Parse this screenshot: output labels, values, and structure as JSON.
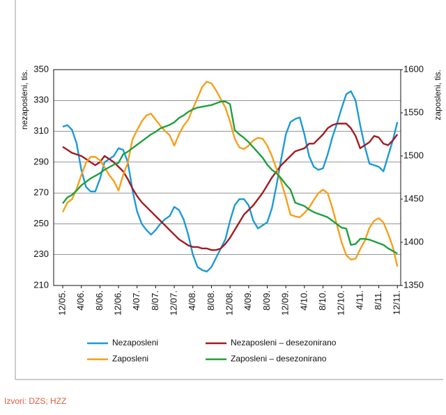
{
  "chart_data": {
    "type": "line",
    "categories": [
      "12/05.",
      null,
      null,
      null,
      "4/06.",
      null,
      null,
      null,
      "8/06.",
      null,
      null,
      null,
      "12/06.",
      null,
      null,
      null,
      "4/07.",
      null,
      null,
      null,
      "8/07.",
      null,
      null,
      null,
      "12/07.",
      null,
      null,
      null,
      "4/08.",
      null,
      null,
      null,
      "8/08.",
      null,
      null,
      null,
      "12/08.",
      null,
      null,
      null,
      "4/09.",
      null,
      null,
      null,
      "8/09.",
      null,
      null,
      null,
      "12/09.",
      null,
      null,
      null,
      "4/10.",
      null,
      null,
      null,
      "8/10.",
      null,
      null,
      null,
      "12/10.",
      null,
      null,
      null,
      "4/11.",
      null,
      null,
      null,
      "8/11.",
      null,
      null,
      null,
      "12/11."
    ],
    "ylabel": "nezaposleni, tis.",
    "y2label": "zaposleni, tis.",
    "ylim": [
      210,
      350
    ],
    "yticks": [
      210,
      230,
      250,
      270,
      290,
      310,
      330,
      350
    ],
    "y2lim": [
      1350,
      1600
    ],
    "y2ticks": [
      1350,
      1400,
      1450,
      1500,
      1550,
      1600
    ],
    "grid": true,
    "legend": "bottom",
    "series": [
      {
        "name": "Nezaposleni",
        "color": "#1b9ad6",
        "values": [
          313,
          314,
          311,
          302,
          285,
          274,
          271,
          271,
          279,
          290,
          292,
          294,
          299,
          298,
          290,
          272,
          258,
          250,
          246,
          243,
          246,
          250,
          253,
          255,
          261,
          259,
          253,
          243,
          230,
          222,
          220,
          219,
          222,
          228,
          234,
          240,
          252,
          262,
          266,
          266,
          262,
          252,
          247,
          249,
          251,
          260,
          275,
          292,
          308,
          316,
          318,
          319,
          308,
          294,
          287,
          285,
          286,
          295,
          306,
          315,
          325,
          334,
          336,
          330,
          314,
          300,
          289,
          288,
          287,
          284,
          294,
          304,
          316
        ]
      },
      {
        "name": "Nezaposleni – desezonirano",
        "color": "#a01c22",
        "values": [
          300,
          298,
          296,
          295,
          294,
          292,
          290,
          288,
          290,
          294,
          292,
          290,
          287,
          284,
          279,
          273,
          268,
          264,
          261,
          258,
          255,
          252,
          249,
          246,
          243,
          240,
          238,
          236,
          235,
          235,
          234,
          234,
          233,
          233,
          234,
          237,
          241,
          246,
          251,
          256,
          259,
          262,
          266,
          270,
          275,
          280,
          284,
          288,
          291,
          294,
          297,
          298,
          299,
          302,
          302,
          305,
          308,
          312,
          314,
          315,
          315,
          315,
          312,
          307,
          299,
          301,
          303,
          307,
          306,
          302,
          301,
          304,
          308
        ]
      },
      {
        "name": "Zaposleni",
        "color": "#f5a01a",
        "axis": "y2",
        "values": [
          1435,
          1446,
          1450,
          1462,
          1478,
          1492,
          1499,
          1499,
          1495,
          1487,
          1478,
          1471,
          1460,
          1478,
          1492,
          1519,
          1530,
          1540,
          1547,
          1549,
          1542,
          1535,
          1529,
          1524,
          1512,
          1525,
          1535,
          1542,
          1555,
          1567,
          1580,
          1586,
          1584,
          1576,
          1566,
          1556,
          1540,
          1520,
          1510,
          1508,
          1512,
          1518,
          1521,
          1520,
          1512,
          1500,
          1485,
          1470,
          1452,
          1432,
          1430,
          1429,
          1434,
          1440,
          1449,
          1457,
          1461,
          1457,
          1440,
          1420,
          1400,
          1385,
          1380,
          1381,
          1392,
          1402,
          1417,
          1425,
          1428,
          1423,
          1410,
          1395,
          1372
        ]
      },
      {
        "name": "Zaposleni – desezonirano",
        "color": "#1ea03c",
        "axis": "y2",
        "values": [
          1445,
          1452,
          1455,
          1460,
          1466,
          1470,
          1474,
          1477,
          1480,
          1484,
          1487,
          1490,
          1492,
          1502,
          1505,
          1509,
          1513,
          1517,
          1521,
          1525,
          1528,
          1532,
          1534,
          1536,
          1539,
          1544,
          1547,
          1551,
          1554,
          1556,
          1557,
          1558,
          1559,
          1561,
          1563,
          1563,
          1560,
          1530,
          1525,
          1521,
          1516,
          1510,
          1504,
          1498,
          1490,
          1484,
          1480,
          1474,
          1467,
          1461,
          1446,
          1444,
          1442,
          1438,
          1435,
          1433,
          1431,
          1429,
          1425,
          1421,
          1417,
          1416,
          1397,
          1398,
          1404,
          1404,
          1403,
          1401,
          1399,
          1397,
          1393,
          1390,
          1387
        ]
      }
    ],
    "source": "Izvori: DZS; HZZ"
  }
}
